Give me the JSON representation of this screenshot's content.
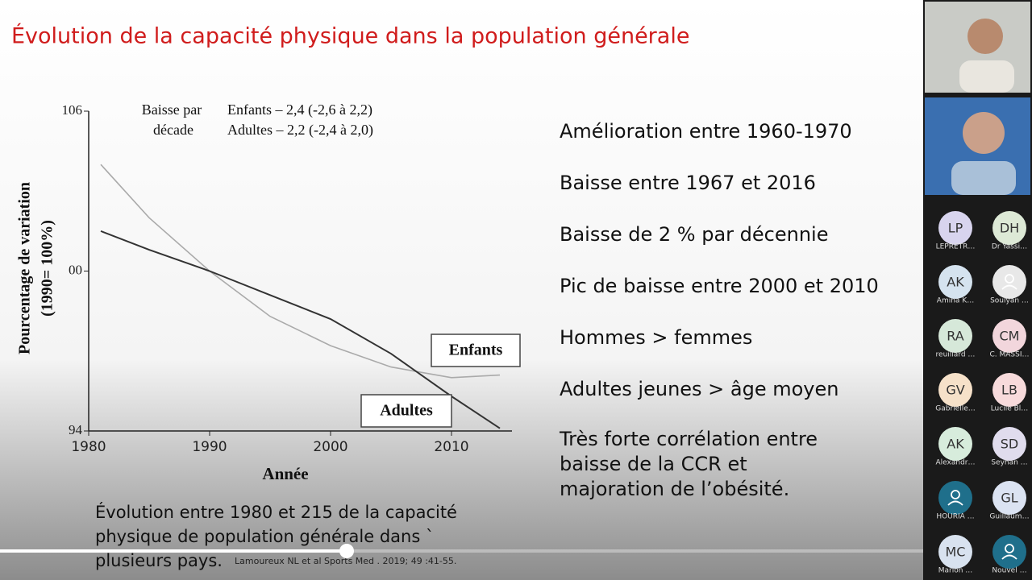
{
  "slide": {
    "title": "Évolution de la capacité physique dans la population générale",
    "bullets": [
      [
        "Amélioration entre 1960-1970"
      ],
      [
        "Baisse entre 1967 et 2016"
      ],
      [
        "Baisse de 2 % par décennie"
      ],
      [
        "Pic de baisse entre 2000 et 2010"
      ],
      [
        "Hommes > femmes"
      ],
      [
        " Adultes jeunes > âge moyen"
      ],
      [
        "Très forte corrélation entre",
        "baisse de la CCR et",
        "majoration de l’obésité."
      ]
    ],
    "caption": [
      "Évolution entre 1980 et 215 de la capacité",
      "physique de population générale dans  `",
      "plusieurs pays."
    ],
    "citation": "Lamoureux NL et al Sports Med . 2019; 49 :41-55."
  },
  "chart_data": {
    "type": "line",
    "annotations": [
      "Baisse par",
      "décade",
      "Enfants – 2,4 (-2,6 à 2,2)",
      "Adultes – 2,2 (-2,4 à 2,0)"
    ],
    "ylabel": [
      "Pourcentage de variation",
      "(1990= 100%)"
    ],
    "xlabel": "Année",
    "x": [
      1981,
      1985,
      1990,
      1995,
      2000,
      2005,
      2010,
      2014
    ],
    "series": [
      {
        "name": "Enfants",
        "color": "#aaaaaa",
        "values": [
          104.0,
          102.0,
          100.0,
          98.3,
          97.2,
          96.4,
          96.0,
          96.1
        ]
      },
      {
        "name": "Adultes",
        "color": "#333333",
        "values": [
          101.5,
          100.8,
          100.0,
          99.1,
          98.2,
          96.9,
          95.3,
          94.1
        ]
      }
    ],
    "xlim": [
      1980,
      2015
    ],
    "ylim": [
      94,
      106
    ],
    "xticks": [
      1980,
      1990,
      2000,
      2010
    ],
    "yticks": [
      94,
      {
        "value": 100,
        "label": "00"
      },
      106
    ]
  },
  "participants": [
    {
      "initials": "LP",
      "name": "LEPRETR…",
      "color": "#d8d4ee"
    },
    {
      "initials": "DH",
      "name": "Dr Yassi…",
      "color": "#dde9d6"
    },
    {
      "initials": "AK",
      "name": "Amina K…",
      "color": "#d5e3ef"
    },
    {
      "name": "Soulyan …",
      "color": "#e8e8e8"
    },
    {
      "initials": "RA",
      "name": "reuillard …",
      "color": "#d6e8d9"
    },
    {
      "initials": "CM",
      "name": "C. MASSI…",
      "color": "#f2d6dc"
    },
    {
      "initials": "GV",
      "name": "Gabrielle…",
      "color": "#f6e1c9"
    },
    {
      "initials": "LB",
      "name": "Lucile Bl…",
      "color": "#f7dadb"
    },
    {
      "initials": "AK",
      "name": "Alexandr…",
      "color": "#d7ecdc"
    },
    {
      "initials": "SD",
      "name": "Seyhan …",
      "color": "#e0dced"
    },
    {
      "name": "HOURIA …",
      "color": "#1f6f8b"
    },
    {
      "initials": "GL",
      "name": "Guillaum…",
      "color": "#dbe3f2"
    },
    {
      "initials": "MC",
      "name": "Marion …",
      "color": "#d8e2ef"
    },
    {
      "name": "Nouvel …",
      "color": "#1f6f8b"
    }
  ]
}
